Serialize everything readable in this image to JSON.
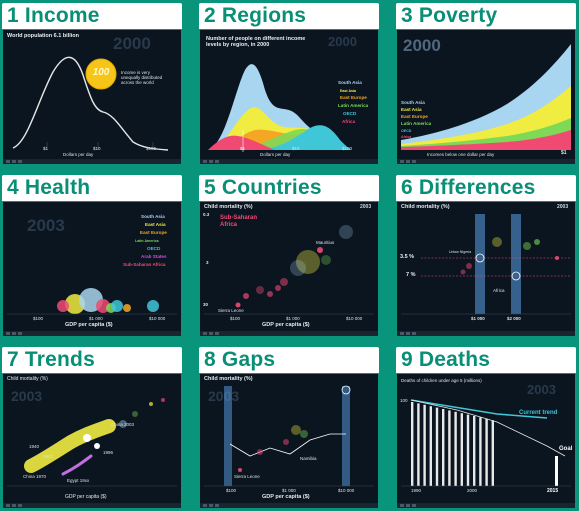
{
  "panels": [
    {
      "title": "1 Income"
    },
    {
      "title": "2 Regions"
    },
    {
      "title": "3 Poverty"
    },
    {
      "title": "4 Health"
    },
    {
      "title": "5 Countries"
    },
    {
      "title": "6 Differences"
    },
    {
      "title": "7 Trends"
    },
    {
      "title": "8 Gaps"
    },
    {
      "title": "9 Deaths"
    }
  ],
  "income": {
    "heading": "World population 6.1 billion",
    "year": "2000",
    "coin": "100",
    "note": "Income is very unequally distributed across the world",
    "xlabel": "Dollars per day",
    "ticks": [
      "$1",
      "$10",
      "$100"
    ]
  },
  "regions": {
    "heading": "Number of people on different income levels by region, in 2000",
    "year": "2000",
    "legend": [
      "South Asia",
      "East Asia",
      "East Europe",
      "Latin America",
      "OECD",
      "Africa"
    ],
    "xlabel": "Dollars per day",
    "ticks": [
      "$1",
      "$10",
      "$100"
    ]
  },
  "poverty": {
    "year": "2000",
    "legend": [
      "South Asia",
      "East Asia",
      "East Europe",
      "Latin America",
      "OECD",
      "Africa"
    ],
    "xlabel": "Incomes below one dollar per day",
    "tick": "$1"
  },
  "health": {
    "year": "2003",
    "legend": [
      "South Asia",
      "East Asia",
      "East Europe",
      "Latin America",
      "OECD",
      "Arab States",
      "Sub-Saharan Africa"
    ],
    "xlabel": "GDP per capita ($)",
    "ticks": [
      "$100",
      "$1 000",
      "$10 000"
    ]
  },
  "countries": {
    "ylabel": "Child mortality (%)",
    "year": "2003",
    "ytick_top": "0.3",
    "ytick_mid": "3",
    "ytick_bot": "30",
    "region": "Sub-Saharan Africa",
    "labels": [
      "Mauritius",
      "Sierra Leone"
    ],
    "xlabel": "GDP per capita ($)",
    "ticks": [
      "$100",
      "$1 000",
      "$10 000"
    ]
  },
  "differences": {
    "ylabel": "Child mortality (%)",
    "year": "2003",
    "yticks": [
      "3.5 %",
      "7 %"
    ],
    "labels": [
      "Urban Nigeria",
      "Africa"
    ],
    "ticks": [
      "$1 000",
      "$2 000"
    ]
  },
  "trends": {
    "ylabel": "Child mortality (%)",
    "year": "2003",
    "labels": [
      "China 1970",
      "China 2003",
      "1940",
      "1942",
      "1996",
      "Egypt 19xx"
    ],
    "xlabel": "GDP per capita ($)"
  },
  "gaps": {
    "ylabel": "Child mortality (%)",
    "year": "2003",
    "labels": [
      "Namibia",
      "Sierra Leone"
    ],
    "xlabel": "GDP per capita ($)",
    "ticks": [
      "$100",
      "$1 000",
      "$10 000"
    ]
  },
  "deaths": {
    "heading": "Deaths of children under age 5 (millions)",
    "year": "2003",
    "ytick": "100",
    "trend": "Current trend",
    "goal": "Goal",
    "xticks": [
      "1990",
      "2000"
    ],
    "goal_year": "2015"
  },
  "colors": {
    "background": "#08957b",
    "panel": "#0b1520",
    "header_text": "#0a8f77",
    "south_asia": "#a8d5ef",
    "east_asia": "#f1ec41",
    "east_europe": "#f5a623",
    "latin_america": "#7ed957",
    "oecd": "#3fc7d8",
    "africa": "#f04a73"
  }
}
